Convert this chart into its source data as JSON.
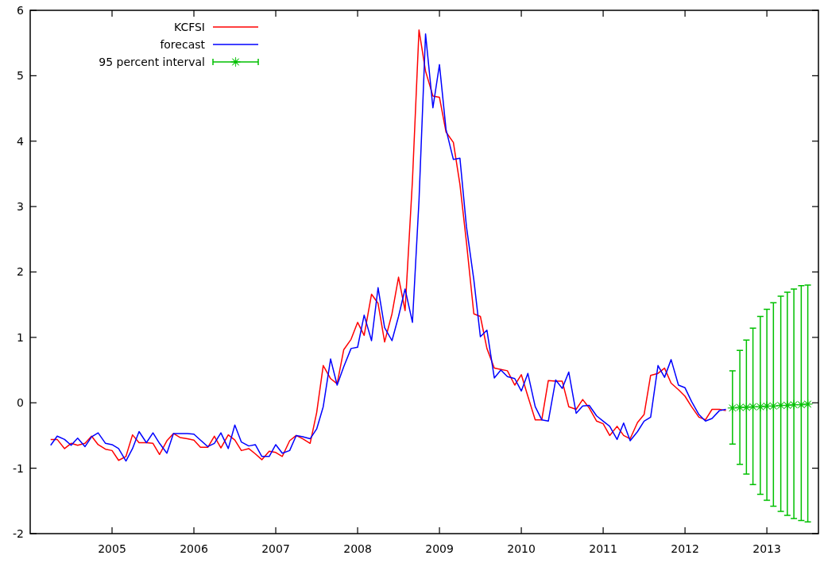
{
  "chart_data": {
    "type": "line",
    "legend": "top left",
    "grid": false,
    "xlim": [
      2004,
      2013.63
    ],
    "ylim": [
      -2,
      6
    ],
    "xticks": [
      2005,
      2006,
      2007,
      2008,
      2009,
      2010,
      2011,
      2012,
      2013
    ],
    "yticks": [
      -2,
      -1,
      0,
      1,
      2,
      3,
      4,
      5,
      6
    ],
    "x": [
      2004.25,
      2004.33,
      2004.42,
      2004.5,
      2004.58,
      2004.67,
      2004.75,
      2004.83,
      2004.92,
      2005.0,
      2005.08,
      2005.17,
      2005.25,
      2005.33,
      2005.42,
      2005.5,
      2005.58,
      2005.67,
      2005.75,
      2005.83,
      2005.92,
      2006.0,
      2006.08,
      2006.17,
      2006.25,
      2006.33,
      2006.42,
      2006.5,
      2006.58,
      2006.67,
      2006.75,
      2006.83,
      2006.92,
      2007.0,
      2007.08,
      2007.17,
      2007.25,
      2007.33,
      2007.42,
      2007.5,
      2007.58,
      2007.67,
      2007.75,
      2007.83,
      2007.92,
      2008.0,
      2008.08,
      2008.17,
      2008.25,
      2008.33,
      2008.42,
      2008.5,
      2008.58,
      2008.67,
      2008.75,
      2008.83,
      2008.92,
      2009.0,
      2009.08,
      2009.17,
      2009.25,
      2009.33,
      2009.42,
      2009.5,
      2009.58,
      2009.67,
      2009.75,
      2009.83,
      2009.92,
      2010.0,
      2010.08,
      2010.17,
      2010.25,
      2010.33,
      2010.42,
      2010.5,
      2010.58,
      2010.67,
      2010.75,
      2010.83,
      2010.92,
      2011.0,
      2011.08,
      2011.17,
      2011.25,
      2011.33,
      2011.42,
      2011.5,
      2011.58,
      2011.67,
      2011.75,
      2011.83,
      2011.92,
      2012.0,
      2012.08,
      2012.17,
      2012.25,
      2012.33,
      2012.42,
      2012.5
    ],
    "series": [
      {
        "name": "KCFSI",
        "color": "#ff0000",
        "marker": "none",
        "values": [
          -0.56,
          -0.56,
          -0.7,
          -0.62,
          -0.65,
          -0.62,
          -0.51,
          -0.64,
          -0.71,
          -0.73,
          -0.88,
          -0.82,
          -0.49,
          -0.61,
          -0.61,
          -0.62,
          -0.79,
          -0.58,
          -0.47,
          -0.53,
          -0.55,
          -0.57,
          -0.68,
          -0.68,
          -0.51,
          -0.69,
          -0.49,
          -0.57,
          -0.73,
          -0.7,
          -0.78,
          -0.87,
          -0.74,
          -0.76,
          -0.82,
          -0.58,
          -0.5,
          -0.55,
          -0.62,
          -0.15,
          0.57,
          0.37,
          0.29,
          0.81,
          0.97,
          1.23,
          1.03,
          1.66,
          1.52,
          0.93,
          1.36,
          1.92,
          1.41,
          3.4,
          5.7,
          5.07,
          4.69,
          4.67,
          4.14,
          3.98,
          3.34,
          2.45,
          1.36,
          1.32,
          0.83,
          0.53,
          0.51,
          0.49,
          0.27,
          0.43,
          0.1,
          -0.26,
          -0.26,
          0.34,
          0.33,
          0.33,
          -0.06,
          -0.1,
          0.05,
          -0.08,
          -0.28,
          -0.32,
          -0.5,
          -0.36,
          -0.5,
          -0.55,
          -0.3,
          -0.18,
          0.42,
          0.45,
          0.53,
          0.3,
          0.2,
          0.1,
          -0.06,
          -0.22,
          -0.26,
          -0.1,
          -0.1,
          -0.12
        ]
      },
      {
        "name": "forecast",
        "color": "#0000ff",
        "marker": "none",
        "values": [
          -0.65,
          -0.51,
          -0.56,
          -0.65,
          -0.54,
          -0.67,
          -0.52,
          -0.46,
          -0.62,
          -0.64,
          -0.7,
          -0.89,
          -0.7,
          -0.44,
          -0.61,
          -0.46,
          -0.62,
          -0.77,
          -0.47,
          -0.47,
          -0.47,
          -0.48,
          -0.57,
          -0.67,
          -0.62,
          -0.46,
          -0.7,
          -0.34,
          -0.6,
          -0.66,
          -0.64,
          -0.82,
          -0.82,
          -0.64,
          -0.77,
          -0.73,
          -0.5,
          -0.52,
          -0.55,
          -0.4,
          -0.06,
          0.67,
          0.27,
          0.55,
          0.83,
          0.85,
          1.34,
          0.95,
          1.76,
          1.15,
          0.95,
          1.32,
          1.74,
          1.23,
          3.09,
          5.64,
          4.51,
          5.17,
          4.18,
          3.72,
          3.74,
          2.69,
          1.88,
          1.01,
          1.11,
          0.38,
          0.5,
          0.4,
          0.37,
          0.18,
          0.45,
          -0.06,
          -0.26,
          -0.28,
          0.35,
          0.22,
          0.47,
          -0.16,
          -0.05,
          -0.04,
          -0.2,
          -0.28,
          -0.36,
          -0.56,
          -0.31,
          -0.58,
          -0.44,
          -0.28,
          -0.22,
          0.57,
          0.39,
          0.66,
          0.27,
          0.23,
          0.02,
          -0.18,
          -0.28,
          -0.24,
          -0.12,
          -0.1
        ]
      },
      {
        "name": "95 percent interval",
        "type": "scatter",
        "color": "#00c000",
        "marker": "star",
        "x": [
          2012.58,
          2012.67,
          2012.75,
          2012.83,
          2012.92,
          2013.0,
          2013.08,
          2013.17,
          2013.25,
          2013.33,
          2013.42,
          2013.5
        ],
        "values": [
          -0.08,
          -0.07,
          -0.07,
          -0.06,
          -0.06,
          -0.05,
          -0.05,
          -0.04,
          -0.04,
          -0.03,
          -0.03,
          -0.02
        ],
        "errors": [
          [
            -0.63,
            0.49
          ],
          [
            -0.94,
            0.8
          ],
          [
            -1.09,
            0.96
          ],
          [
            -1.25,
            1.14
          ],
          [
            -1.4,
            1.32
          ],
          [
            -1.49,
            1.43
          ],
          [
            -1.58,
            1.53
          ],
          [
            -1.66,
            1.63
          ],
          [
            -1.72,
            1.69
          ],
          [
            -1.77,
            1.74
          ],
          [
            -1.8,
            1.79
          ],
          [
            -1.82,
            1.8
          ]
        ]
      }
    ]
  }
}
